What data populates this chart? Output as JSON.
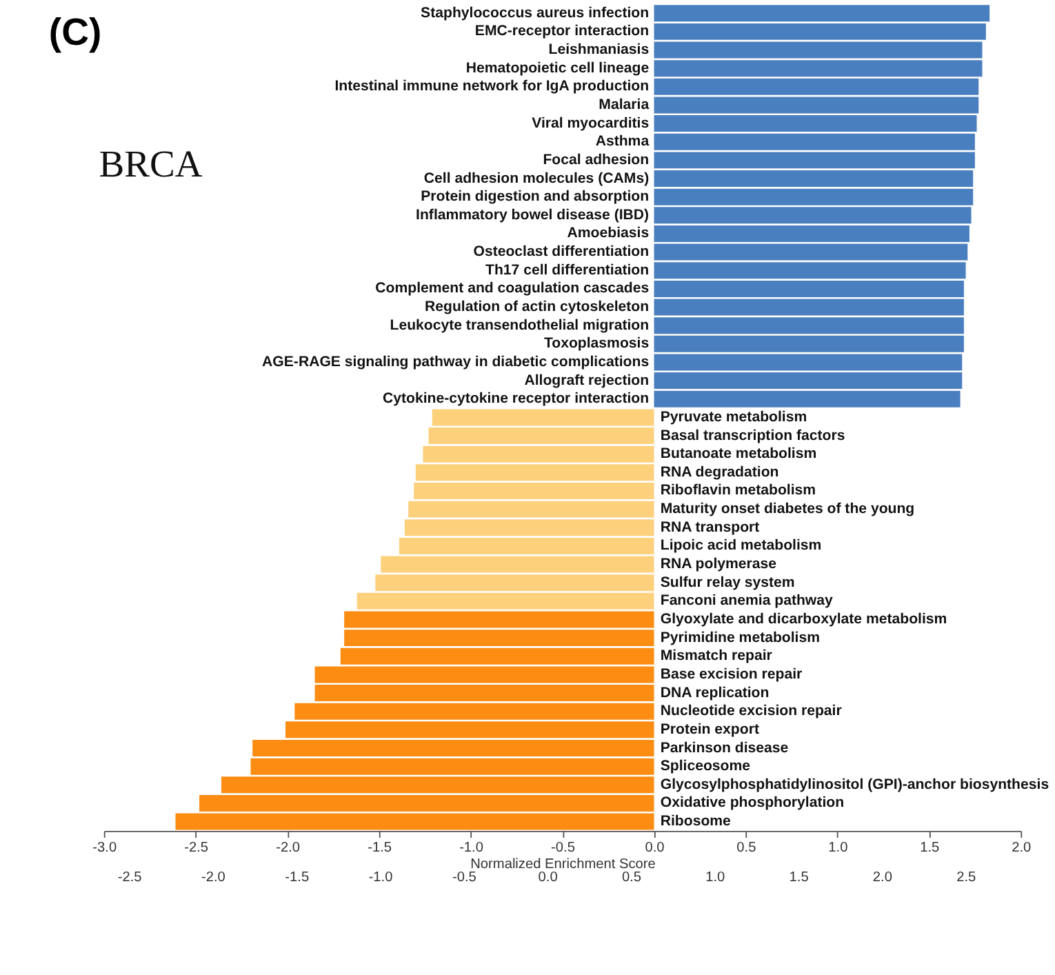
{
  "chart_data": {
    "type": "bar",
    "orientation": "horizontal",
    "title": "(C)",
    "annotations": [
      "BRCA"
    ],
    "xlabel": "Normalized Enrichment Score",
    "categories": [
      "Staphylococcus aureus infection",
      "EMC-receptor interaction",
      "Leishmaniasis",
      "Hematopoietic cell lineage",
      "Intestinal immune network for IgA production",
      "Malaria",
      "Viral myocarditis",
      "Asthma",
      "Focal adhesion",
      "Cell adhesion molecules (CAMs)",
      "Protein digestion and absorption",
      "Inflammatory bowel disease (IBD)",
      "Amoebiasis",
      "Osteoclast differentiation",
      "Th17 cell differentiation",
      "Complement and coagulation cascades",
      "Regulation of actin cytoskeleton",
      "Leukocyte transendothelial migration",
      "Toxoplasmosis",
      "AGE-RAGE signaling pathway in diabetic complications",
      "Allograft rejection",
      "Cytokine-cytokine receptor interaction",
      "Pyruvate metabolism",
      "Basal transcription factors",
      "Butanoate metabolism",
      "RNA degradation",
      "Riboflavin metabolism",
      "Maturity onset diabetes of the young",
      "RNA transport",
      "Lipoic acid metabolism",
      "RNA polymerase",
      "Sulfur relay system",
      "Fanconi anemia pathway",
      "Glyoxylate and dicarboxylate metabolism",
      "Pyrimidine metabolism",
      "Mismatch repair",
      "Base excision repair",
      "DNA replication",
      "Nucleotide excision repair",
      "Protein export",
      "Parkinson disease",
      "Spliceosome",
      "Glycosylphosphatidylinositol (GPI)-anchor biosynthesis",
      "Oxidative phosphorylation",
      "Ribosome"
    ],
    "values": [
      1.83,
      1.81,
      1.79,
      1.79,
      1.77,
      1.77,
      1.76,
      1.75,
      1.75,
      1.74,
      1.74,
      1.73,
      1.72,
      1.71,
      1.7,
      1.69,
      1.69,
      1.69,
      1.69,
      1.68,
      1.68,
      1.67,
      -1.21,
      -1.23,
      -1.26,
      -1.3,
      -1.31,
      -1.34,
      -1.36,
      -1.39,
      -1.49,
      -1.52,
      -1.62,
      -1.69,
      -1.69,
      -1.71,
      -1.85,
      -1.85,
      -1.96,
      -2.01,
      -2.19,
      -2.2,
      -2.36,
      -2.48,
      -2.61
    ],
    "colors": [
      "#4a7fbf",
      "#4a7fbf",
      "#4a7fbf",
      "#4a7fbf",
      "#4a7fbf",
      "#4a7fbf",
      "#4a7fbf",
      "#4a7fbf",
      "#4a7fbf",
      "#4a7fbf",
      "#4a7fbf",
      "#4a7fbf",
      "#4a7fbf",
      "#4a7fbf",
      "#4a7fbf",
      "#4a7fbf",
      "#4a7fbf",
      "#4a7fbf",
      "#4a7fbf",
      "#4a7fbf",
      "#4a7fbf",
      "#4a7fbf",
      "#fdd07c",
      "#fdd07c",
      "#fdd07c",
      "#fdd07c",
      "#fdd07c",
      "#fdd07c",
      "#fdd07c",
      "#fdd07c",
      "#fdd07c",
      "#fdd07c",
      "#fdd07c",
      "#fc8c12",
      "#fc8c12",
      "#fc8c12",
      "#fc8c12",
      "#fc8c12",
      "#fc8c12",
      "#fc8c12",
      "#fc8c12",
      "#fc8c12",
      "#fc8c12",
      "#fc8c12",
      "#fc8c12"
    ],
    "xlim": [
      -3.0,
      2.0
    ],
    "xticks": [
      {
        "value": -3,
        "label": "-3.0"
      },
      {
        "value": -2.5,
        "label": "-2.5"
      },
      {
        "value": -2,
        "label": "-2.0"
      },
      {
        "value": -1.5,
        "label": "-1.5"
      },
      {
        "value": -1,
        "label": "-1.0"
      },
      {
        "value": -0.5,
        "label": "-0.5"
      },
      {
        "value": 0,
        "label": "0.0"
      },
      {
        "value": 0.5,
        "label": "0.5"
      },
      {
        "value": 1,
        "label": "1.0"
      },
      {
        "value": 1.5,
        "label": "1.5"
      },
      {
        "value": 2,
        "label": "2.0"
      }
    ],
    "x2lim": [
      -2.65,
      2.83
    ],
    "x2ticks": [
      {
        "value": -2.5,
        "label": "-2.5"
      },
      {
        "value": -2,
        "label": "-2.0"
      },
      {
        "value": -1.5,
        "label": "-1.5"
      },
      {
        "value": -1,
        "label": "-1.0"
      },
      {
        "value": -0.5,
        "label": "-0.5"
      },
      {
        "value": 0,
        "label": "0.0"
      },
      {
        "value": 0.5,
        "label": "0.5"
      },
      {
        "value": 1,
        "label": "1.0"
      },
      {
        "value": 1.5,
        "label": "1.5"
      },
      {
        "value": 2,
        "label": "2.0"
      },
      {
        "value": 2.5,
        "label": "2.5"
      }
    ],
    "tick_labels": "x"
  }
}
